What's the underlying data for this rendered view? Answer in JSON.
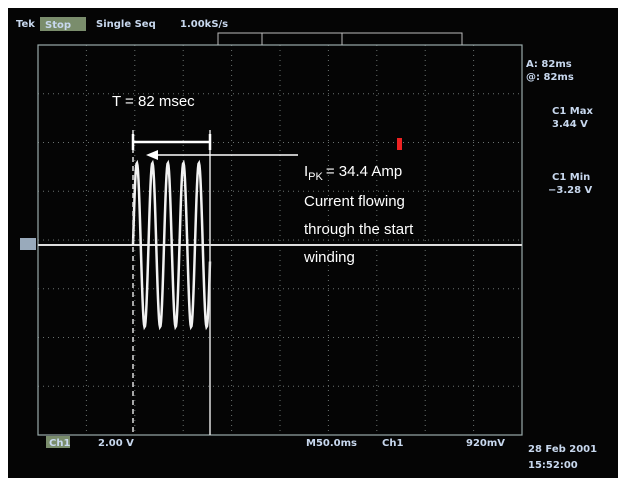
{
  "header": {
    "brand": "Tek",
    "state": "Stop",
    "mode": "Single Seq",
    "sample_rate": "1.00kS/s"
  },
  "annotations": {
    "period": "T = 82 msec",
    "peak_symbol": "I",
    "peak_subscript": "PK",
    "peak_value": "= 34.4 Amp",
    "description": [
      "Current flowing",
      "through the start",
      "winding"
    ]
  },
  "readouts": {
    "cursor_a": "A: 82ms",
    "cursor_b": "@: 82ms",
    "max_label": "C1 Max",
    "max_value": "3.44 V",
    "min_label": "C1 Min",
    "min_value": "−3.28 V"
  },
  "footer": {
    "channel": "Ch1",
    "volts_per_div": "2.00 V",
    "time_per_div": "M50.0ms",
    "trigger_source": "Ch1",
    "trigger_level": "920mV",
    "date": "28 Feb 2001",
    "time": "15:52:00"
  }
}
